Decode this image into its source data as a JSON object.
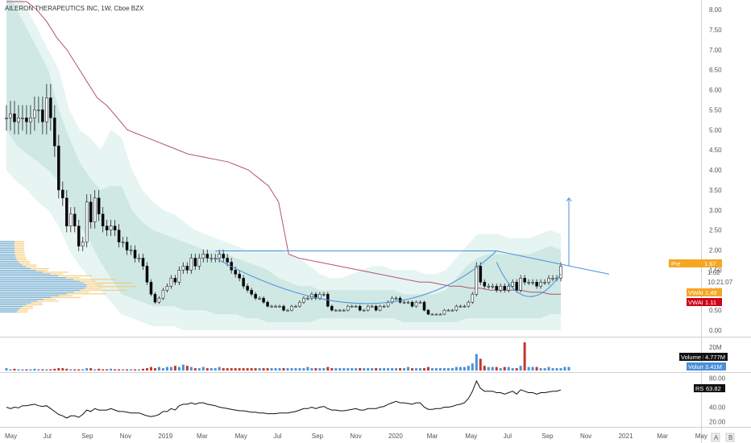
{
  "header": {
    "title": "AILERON THERAPEUTICS INC, 1W, Cboe BZX"
  },
  "colors": {
    "up": "#3a3a3a",
    "down": "#000000",
    "band_outer": "#e6f4f2",
    "band_inner": "#cfe8e4",
    "vwap_line": "#b0566b",
    "pattern_line": "#4a90d9",
    "volume_up": "#4a90d9",
    "volume_down": "#c0392b",
    "profile_blue": "#5aa9e6",
    "profile_orange": "#f5c56b",
    "tag_pre": "#f5a623",
    "tag_vwap1": "#f5a623",
    "tag_vwap2": "#d0021b",
    "tag_dark": "#111111",
    "tag_blue": "#4a90d9"
  },
  "tags": {
    "pre": "Pre",
    "pre_value": "1.67",
    "last": "1.62",
    "countdown": "10:21:07",
    "vwap1": "VWAP",
    "vwap1_value": "1.49",
    "vwap2": "VWAP",
    "vwap2_value": "1.11",
    "volume_ma": "Volume MA",
    "volume_ma_value": "4.777M",
    "volume": "Volume",
    "volume_value": "3.41M",
    "rsi": "RSI",
    "rsi_value": "63.82"
  },
  "chart_data": [
    {
      "type": "candlestick",
      "title": "AILERON THERAPEUTICS INC, 1W, Cboe BZX",
      "yticks": [
        "8.00",
        "7.50",
        "7.00",
        "6.50",
        "6.00",
        "5.50",
        "5.00",
        "4.50",
        "4.00",
        "3.50",
        "3.00",
        "2.50",
        "2.00",
        "1.50",
        "1.00",
        "0.50",
        "0.00"
      ],
      "ylim": [
        0,
        8
      ],
      "xticks": [
        "May",
        "Jul",
        "Sep",
        "Nov",
        "2019",
        "Mar",
        "May",
        "Jul",
        "Sep",
        "Nov",
        "2020",
        "Mar",
        "May",
        "Jul",
        "Sep",
        "Nov",
        "2021",
        "Mar",
        "May"
      ],
      "close": [
        5.3,
        5.4,
        5.2,
        5.3,
        5.3,
        5.2,
        5.3,
        5.5,
        5.5,
        5.2,
        5.8,
        5.3,
        4.6,
        3.5,
        3.3,
        2.6,
        2.9,
        2.6,
        2.1,
        2.2,
        3.2,
        2.7,
        3.3,
        2.9,
        2.6,
        2.5,
        2.6,
        2.5,
        2.2,
        2.2,
        2.0,
        2.0,
        1.8,
        1.8,
        1.6,
        1.2,
        0.9,
        0.7,
        0.8,
        1.0,
        1.1,
        1.3,
        1.2,
        1.5,
        1.6,
        1.5,
        1.8,
        1.6,
        1.8,
        1.9,
        1.8,
        1.8,
        1.8,
        1.9,
        1.8,
        1.7,
        1.5,
        1.4,
        1.3,
        1.1,
        1.0,
        0.9,
        0.8,
        0.8,
        0.7,
        0.6,
        0.6,
        0.6,
        0.6,
        0.5,
        0.5,
        0.6,
        0.6,
        0.7,
        0.8,
        0.8,
        0.9,
        0.8,
        0.9,
        0.9,
        0.6,
        0.5,
        0.5,
        0.5,
        0.5,
        0.6,
        0.6,
        0.6,
        0.5,
        0.5,
        0.6,
        0.6,
        0.5,
        0.6,
        0.6,
        0.7,
        0.8,
        0.8,
        0.7,
        0.7,
        0.7,
        0.6,
        0.7,
        0.7,
        0.5,
        0.4,
        0.4,
        0.4,
        0.4,
        0.5,
        0.5,
        0.5,
        0.6,
        0.6,
        0.6,
        0.7,
        0.9,
        1.6,
        1.2,
        1.1,
        1.1,
        1.1,
        1.0,
        1.1,
        1.0,
        1.1,
        1.2,
        1.0,
        1.3,
        1.2,
        1.2,
        1.2,
        1.1,
        1.2,
        1.2,
        1.3,
        1.3,
        1.3,
        1.6
      ],
      "vwap_line": [
        9.0,
        8.5,
        8.3,
        8.0,
        7.7,
        7.3,
        7.0,
        6.6,
        6.2,
        5.8,
        5.6,
        5.3,
        5.0,
        4.9,
        4.8,
        4.7,
        4.6,
        4.5,
        4.4,
        4.35,
        4.3,
        4.25,
        4.2,
        4.1,
        4.0,
        3.8,
        3.6,
        3.2,
        1.9,
        1.8,
        1.75,
        1.7,
        1.65,
        1.6,
        1.55,
        1.5,
        1.45,
        1.4,
        1.35,
        1.3,
        1.25,
        1.2,
        1.2,
        1.15,
        1.1,
        1.1,
        1.05,
        1.05,
        1.0,
        1.0,
        1.0,
        1.0,
        0.95,
        0.95,
        0.9,
        0.9
      ],
      "band_outer_upper": [
        9,
        8.5,
        8,
        7.5,
        7,
        6.5,
        5.5,
        5,
        4.8,
        4.5,
        5,
        4.8,
        4,
        3.5,
        3.2,
        3,
        2.9,
        2.7,
        2.5,
        2.4,
        2.3,
        2.2,
        2.1,
        2.0,
        2.0,
        2.0,
        2.0,
        1.9,
        1.8,
        1.6,
        1.4,
        1.3,
        1.3,
        1.4,
        1.5,
        1.6,
        1.6,
        1.5,
        1.5,
        1.5,
        1.4,
        1.4,
        1.5,
        1.8,
        2.1,
        2.4,
        2.4,
        2.4,
        2.3,
        2.3,
        2.3,
        2.4,
        2.5,
        2.4
      ],
      "band_inner_upper": [
        8.5,
        8,
        7.5,
        7,
        6.5,
        5.5,
        4.8,
        4.2,
        3.8,
        3.5,
        3.6,
        3.6,
        3.0,
        2.7,
        2.5,
        2.4,
        2.3,
        2.2,
        2.1,
        2.0,
        2.0,
        1.9,
        1.8,
        1.7,
        1.6,
        1.5,
        1.3,
        1.2,
        1.1,
        1.1,
        1.0,
        1.0,
        1.0,
        1.0,
        1.0,
        1.0,
        1.0,
        1.0,
        0.9,
        0.9,
        0.9,
        0.9,
        1.0,
        1.3,
        1.6,
        1.8,
        1.9,
        1.9,
        1.9,
        1.9,
        1.9,
        2.0,
        2.1,
        2.0
      ],
      "band_inner_lower": [
        5.0,
        4.6,
        4.4,
        4.2,
        4.0,
        3.7,
        3.2,
        2.6,
        2.2,
        1.7,
        1.3,
        0.9,
        0.8,
        0.7,
        0.6,
        0.6,
        0.6,
        0.5,
        0.5,
        0.5,
        0.4,
        0.4,
        0.4,
        0.3,
        0.3,
        0.2,
        0.2,
        0.2,
        0.2,
        0.2,
        0.3,
        0.3,
        0.3,
        0.3,
        0.3,
        0.3,
        0.3,
        0.3,
        0.2,
        0.2,
        0.2,
        0.2,
        0.2,
        0.2,
        0.3,
        0.3,
        0.3,
        0.3,
        0.3,
        0.3,
        0.3,
        0.3,
        0.4,
        0.4
      ],
      "band_outer_lower": [
        4.0,
        3.7,
        3.5,
        3.2,
        3.0,
        2.6,
        2.0,
        1.6,
        1.3,
        1.0,
        0.7,
        0.4,
        0.3,
        0.2,
        0.1,
        0.1,
        0.1,
        0.0,
        0.0,
        0.0,
        0.0,
        0.0,
        0.0,
        0.0,
        0.0,
        0.0,
        0.0,
        0.0,
        0.0,
        0.0,
        0.0,
        0.0,
        0.0,
        0.0,
        0.0,
        0.0,
        0.0,
        0.0,
        0.0,
        0.0,
        0.0,
        0.0,
        0.0,
        0.0,
        0.0,
        0.0,
        0.0,
        0.0,
        0.0,
        0.0,
        0.0,
        0.0,
        0.0,
        0.0
      ],
      "pattern_lines": {
        "resistance": [
          [
            52,
            1.98
          ],
          [
            122,
            1.98
          ]
        ],
        "downtrend": [
          [
            122,
            1.98
          ],
          [
            150,
            1.4
          ]
        ],
        "cup": [
          [
            52,
            1.8
          ],
          [
            95,
            0.25
          ],
          [
            122,
            1.98
          ]
        ],
        "handle": [
          [
            122,
            1.7
          ],
          [
            129,
            0.95
          ],
          [
            138,
            1.4
          ]
        ],
        "target": [
          [
            140,
            1.6
          ],
          [
            140,
            3.3
          ]
        ]
      }
    },
    {
      "type": "bar",
      "title": "Volume",
      "yticks": [
        "20M"
      ],
      "ylim": [
        0,
        26
      ],
      "values": [
        2,
        1,
        1.5,
        1,
        1,
        1,
        1,
        1.5,
        1,
        1,
        1,
        1,
        1.5,
        2,
        2,
        1.5,
        1,
        1,
        1,
        1,
        2,
        2,
        1,
        1.5,
        1,
        1,
        1.5,
        1,
        1,
        1,
        1,
        1,
        1,
        1,
        1.5,
        2,
        3,
        2,
        3,
        2,
        3,
        3,
        4,
        3,
        5,
        4,
        3,
        2,
        2,
        3,
        2,
        2,
        2,
        3,
        2,
        2,
        2,
        2,
        2,
        2,
        2,
        2,
        2,
        2,
        2,
        2,
        2,
        2,
        2,
        2,
        2,
        2,
        2,
        2,
        2,
        3,
        2,
        2,
        2,
        2,
        3,
        2,
        2,
        2,
        2,
        2,
        2,
        2,
        2,
        2,
        2,
        2,
        2,
        2,
        2,
        2,
        2,
        2,
        2,
        2,
        3,
        2,
        2,
        2,
        2,
        3,
        2,
        2,
        2,
        2,
        2,
        2,
        3,
        3,
        3,
        4,
        6,
        14,
        10,
        4,
        3,
        3,
        3,
        2,
        3,
        3,
        2,
        2,
        4,
        24,
        3,
        3,
        3,
        2,
        2,
        3,
        2,
        2,
        2,
        3,
        3
      ]
    },
    {
      "type": "line",
      "title": "RSI",
      "yticks": [
        "80.00",
        "40.00",
        "20.00"
      ],
      "ylim": [
        15,
        85
      ],
      "values": [
        40,
        38,
        40,
        39,
        42,
        42,
        43,
        44,
        42,
        41,
        42,
        38,
        34,
        30,
        28,
        25,
        28,
        28,
        26,
        30,
        36,
        34,
        38,
        36,
        36,
        36,
        38,
        36,
        34,
        34,
        33,
        32,
        32,
        32,
        30,
        28,
        27,
        28,
        30,
        34,
        34,
        38,
        36,
        42,
        44,
        44,
        46,
        44,
        46,
        46,
        44,
        43,
        42,
        40,
        39,
        38,
        37,
        36,
        35,
        35,
        34,
        33,
        33,
        32,
        32,
        31,
        31,
        31,
        32,
        32,
        32,
        33,
        34,
        36,
        38,
        38,
        40,
        38,
        40,
        41,
        38,
        36,
        36,
        35,
        35,
        36,
        37,
        38,
        36,
        36,
        38,
        38,
        38,
        40,
        41,
        44,
        46,
        48,
        46,
        46,
        45,
        44,
        46,
        46,
        40,
        37,
        37,
        38,
        38,
        40,
        40,
        41,
        43,
        44,
        46,
        52,
        62,
        76,
        66,
        62,
        62,
        62,
        60,
        60,
        58,
        60,
        62,
        58,
        64,
        62,
        60,
        60,
        58,
        60,
        60,
        61,
        62,
        62,
        63.82
      ]
    }
  ]
}
